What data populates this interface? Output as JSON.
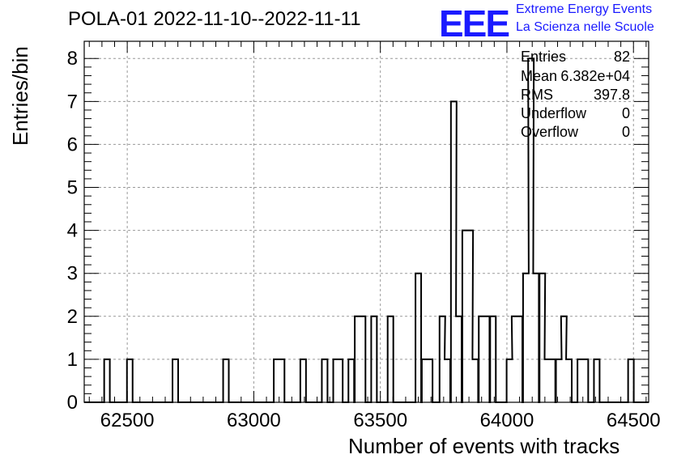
{
  "title": "POLA-01 2022-11-10--2022-11-11",
  "logo": {
    "text": "EEE",
    "line1": "Extreme Energy Events",
    "line2": "La Scienza nelle Scuole",
    "color": "#1a1aff"
  },
  "stats": [
    {
      "name": "Entries",
      "value": "82"
    },
    {
      "name": "Mean",
      "value": "6.382e+04"
    },
    {
      "name": "RMS",
      "value": "397.8"
    },
    {
      "name": "Underflow",
      "value": "0"
    },
    {
      "name": "Overflow",
      "value": "0"
    }
  ],
  "chart_data": {
    "type": "bar",
    "xlabel": "Number of events with tracks",
    "ylabel": "Entries/bin",
    "xlim": [
      62330,
      64560
    ],
    "ylim": [
      0,
      8.4
    ],
    "xticks": [
      "62500",
      "63000",
      "63500",
      "64000",
      "64500"
    ],
    "yticks": [
      "0",
      "1",
      "2",
      "3",
      "4",
      "5",
      "6",
      "7",
      "8"
    ],
    "grid": true,
    "bin_width": 22.3,
    "bins": [
      {
        "x": 62420,
        "y": 1
      },
      {
        "x": 62510,
        "y": 1
      },
      {
        "x": 62690,
        "y": 1
      },
      {
        "x": 62890,
        "y": 1
      },
      {
        "x": 63090,
        "y": 1
      },
      {
        "x": 63110,
        "y": 1
      },
      {
        "x": 63195,
        "y": 1
      },
      {
        "x": 63280,
        "y": 1
      },
      {
        "x": 63325,
        "y": 1
      },
      {
        "x": 63340,
        "y": 1
      },
      {
        "x": 63385,
        "y": 1
      },
      {
        "x": 63410,
        "y": 2
      },
      {
        "x": 63430,
        "y": 2
      },
      {
        "x": 63475,
        "y": 2
      },
      {
        "x": 63540,
        "y": 2
      },
      {
        "x": 63650,
        "y": 3
      },
      {
        "x": 63675,
        "y": 1
      },
      {
        "x": 63695,
        "y": 1
      },
      {
        "x": 63745,
        "y": 2
      },
      {
        "x": 63765,
        "y": 1
      },
      {
        "x": 63790,
        "y": 7
      },
      {
        "x": 63810,
        "y": 2
      },
      {
        "x": 63835,
        "y": 4
      },
      {
        "x": 63855,
        "y": 4
      },
      {
        "x": 63875,
        "y": 1
      },
      {
        "x": 63900,
        "y": 2
      },
      {
        "x": 63920,
        "y": 2
      },
      {
        "x": 63945,
        "y": 2
      },
      {
        "x": 64010,
        "y": 1
      },
      {
        "x": 64030,
        "y": 2
      },
      {
        "x": 64050,
        "y": 2
      },
      {
        "x": 64075,
        "y": 3
      },
      {
        "x": 64095,
        "y": 8
      },
      {
        "x": 64115,
        "y": 3
      },
      {
        "x": 64140,
        "y": 3
      },
      {
        "x": 64160,
        "y": 1
      },
      {
        "x": 64180,
        "y": 1
      },
      {
        "x": 64205,
        "y": 1
      },
      {
        "x": 64225,
        "y": 2
      },
      {
        "x": 64245,
        "y": 1
      },
      {
        "x": 64290,
        "y": 1
      },
      {
        "x": 64310,
        "y": 1
      },
      {
        "x": 64355,
        "y": 1
      },
      {
        "x": 64490,
        "y": 1
      }
    ]
  }
}
